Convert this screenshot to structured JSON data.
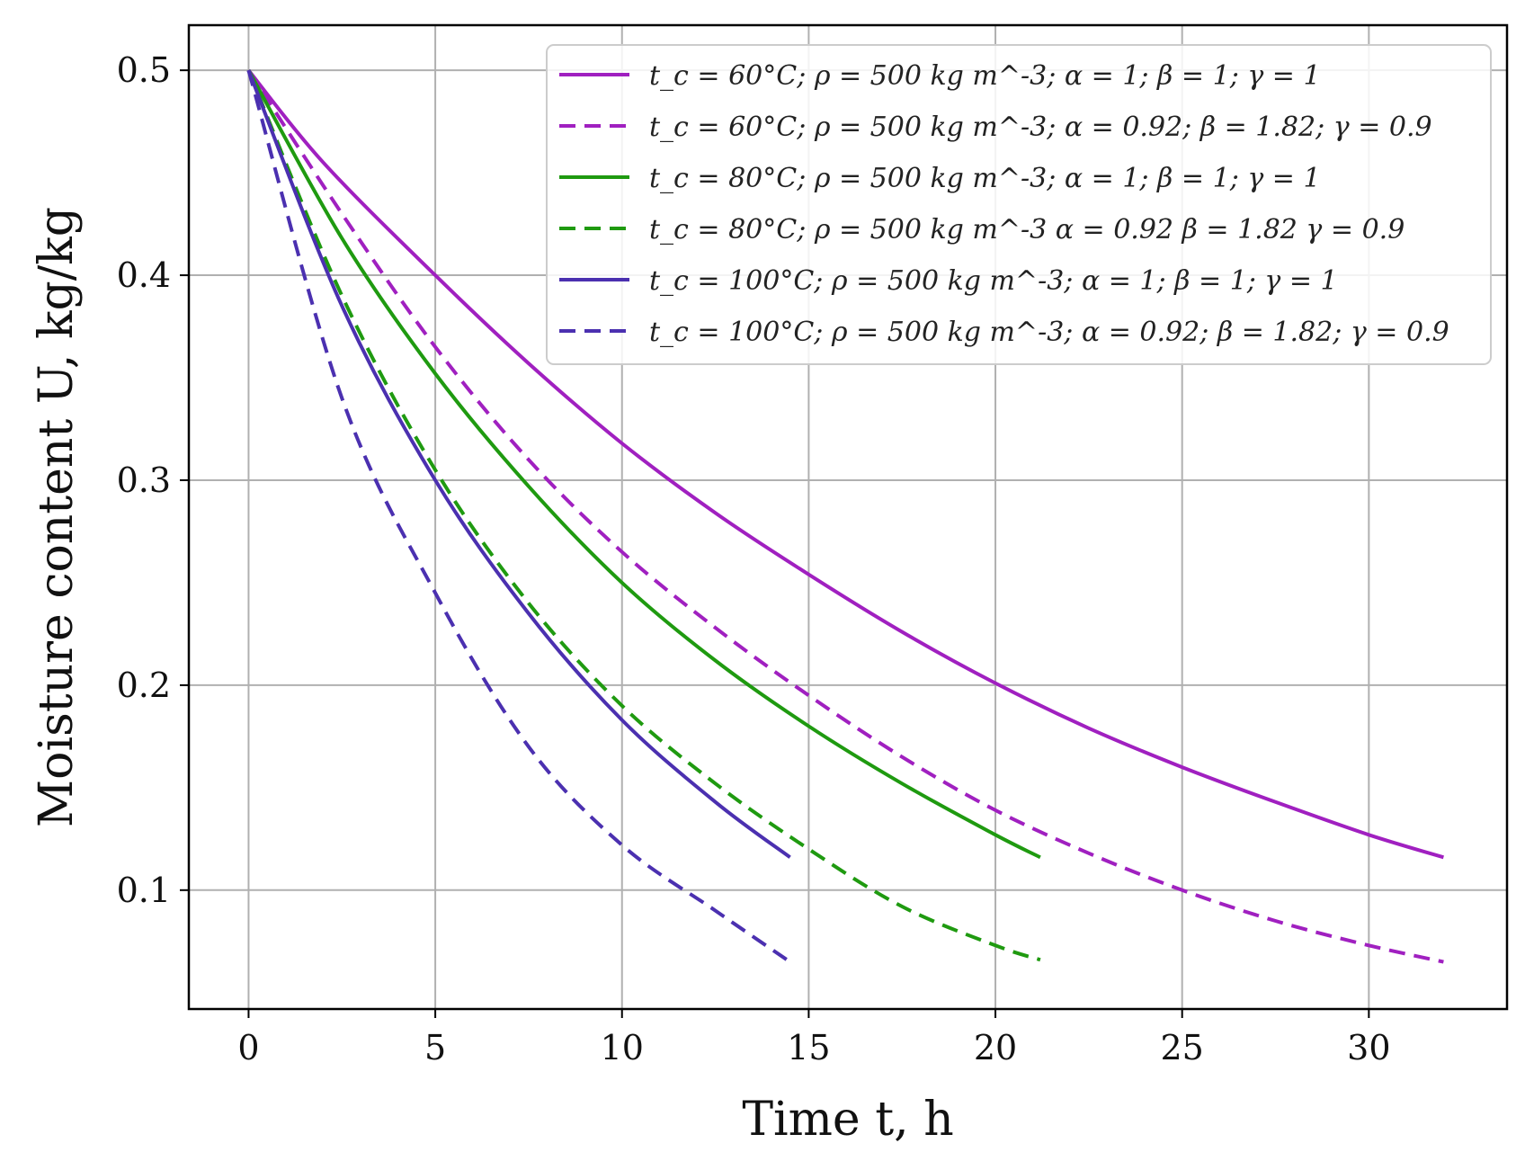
{
  "chart_data": {
    "type": "line",
    "title": "",
    "xlabel": "Time t, h",
    "ylabel": "Moisture content U, kg/kg",
    "xlim": [
      -1.6,
      33.7
    ],
    "ylim": [
      0.042,
      0.522
    ],
    "xticks": [
      0,
      5,
      10,
      15,
      20,
      25,
      30
    ],
    "yticks": [
      0.1,
      0.2,
      0.3,
      0.4,
      0.5
    ],
    "xtick_labels": [
      "0",
      "5",
      "10",
      "15",
      "20",
      "25",
      "30"
    ],
    "ytick_labels": [
      "0.1",
      "0.2",
      "0.3",
      "0.4",
      "0.5"
    ],
    "grid": true,
    "legend_position": "top-right",
    "series": [
      {
        "name": "t_c = 60°C; ρ = 500 kg m^-3; α = 1; β = 1; γ = 1",
        "color": "#a020c0",
        "dash": "solid",
        "x": [
          0,
          2,
          5,
          7.5,
          10,
          12.5,
          15,
          17.5,
          20,
          22.5,
          25,
          27.5,
          30,
          32
        ],
        "y": [
          0.5,
          0.455,
          0.4,
          0.357,
          0.318,
          0.284,
          0.254,
          0.226,
          0.201,
          0.179,
          0.16,
          0.143,
          0.127,
          0.116
        ]
      },
      {
        "name": "t_c = 60°C; ρ = 500 kg m^-3; α = 0.92; β = 1.82; γ = 0.9",
        "color": "#a020c0",
        "dash": "dashed",
        "x": [
          0,
          2.5,
          5,
          7.5,
          10,
          12.5,
          15,
          17.5,
          20,
          22.5,
          25,
          27.5,
          30,
          32
        ],
        "y": [
          0.5,
          0.43,
          0.365,
          0.31,
          0.265,
          0.228,
          0.195,
          0.165,
          0.139,
          0.118,
          0.1,
          0.085,
          0.073,
          0.065
        ]
      },
      {
        "name": "t_c = 80°C; ρ = 500 kg m^-3; α = 1; β = 1; γ = 1",
        "color": "#1f9a10",
        "dash": "solid",
        "x": [
          0,
          2.5,
          5,
          7.5,
          10,
          12.5,
          15,
          17.5,
          20,
          21.2
        ],
        "y": [
          0.5,
          0.418,
          0.352,
          0.297,
          0.25,
          0.212,
          0.18,
          0.152,
          0.127,
          0.116
        ]
      },
      {
        "name": "t_c = 80°C; ρ = 500 kg m^-3 α = 0.92 β = 1.82 γ = 0.9",
        "color": "#1f9a10",
        "dash": "dashed",
        "x": [
          0,
          2.5,
          5,
          7.5,
          10,
          12.5,
          15,
          17.5,
          20,
          21.2
        ],
        "y": [
          0.5,
          0.39,
          0.305,
          0.24,
          0.19,
          0.152,
          0.12,
          0.092,
          0.073,
          0.066
        ]
      },
      {
        "name": "t_c = 100°C; ρ = 500 kg m^-3; α = 1; β = 1; γ = 1",
        "color": "#4b30b0",
        "dash": "solid",
        "x": [
          0,
          2.5,
          5,
          7.5,
          10,
          12.5,
          14.5
        ],
        "y": [
          0.5,
          0.385,
          0.3,
          0.235,
          0.183,
          0.143,
          0.116
        ]
      },
      {
        "name": "t_c = 100°C; ρ = 500 kg m^-3; α = 0.92; β = 1.82; γ = 0.9",
        "color": "#4b30b0",
        "dash": "dashed",
        "x": [
          0,
          2.5,
          5,
          7.5,
          10,
          12.5,
          14.5
        ],
        "y": [
          0.5,
          0.34,
          0.245,
          0.17,
          0.122,
          0.09,
          0.065
        ]
      }
    ]
  }
}
